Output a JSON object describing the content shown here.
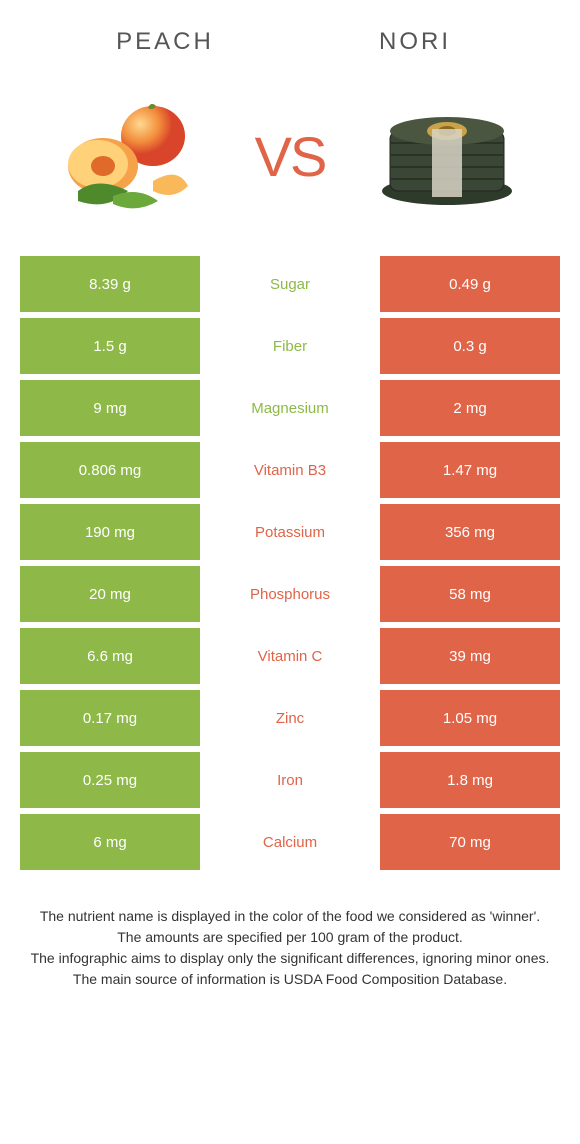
{
  "colors": {
    "green": "#8eb948",
    "orange": "#e06448",
    "mid_bg": "#ffffff",
    "text_dark": "#555555"
  },
  "header": {
    "left": "PEACH",
    "right": "NORI",
    "vs": "VS"
  },
  "rows": [
    {
      "left": "8.39 g",
      "label": "Sugar",
      "right": "0.49 g",
      "winner": "left"
    },
    {
      "left": "1.5 g",
      "label": "Fiber",
      "right": "0.3 g",
      "winner": "left"
    },
    {
      "left": "9 mg",
      "label": "Magnesium",
      "right": "2 mg",
      "winner": "left"
    },
    {
      "left": "0.806 mg",
      "label": "Vitamin B3",
      "right": "1.47 mg",
      "winner": "right"
    },
    {
      "left": "190 mg",
      "label": "Potassium",
      "right": "356 mg",
      "winner": "right"
    },
    {
      "left": "20 mg",
      "label": "Phosphorus",
      "right": "58 mg",
      "winner": "right"
    },
    {
      "left": "6.6 mg",
      "label": "Vitamin C",
      "right": "39 mg",
      "winner": "right"
    },
    {
      "left": "0.17 mg",
      "label": "Zinc",
      "right": "1.05 mg",
      "winner": "right"
    },
    {
      "left": "0.25 mg",
      "label": "Iron",
      "right": "1.8 mg",
      "winner": "right"
    },
    {
      "left": "6 mg",
      "label": "Calcium",
      "right": "70 mg",
      "winner": "right"
    }
  ],
  "footnotes": [
    "The nutrient name is displayed in the color of the food we considered as 'winner'.",
    "The amounts are specified per 100 gram of the product.",
    "The infographic aims to display only the significant differences, ignoring minor ones.",
    "The main source of information is USDA Food Composition Database."
  ]
}
